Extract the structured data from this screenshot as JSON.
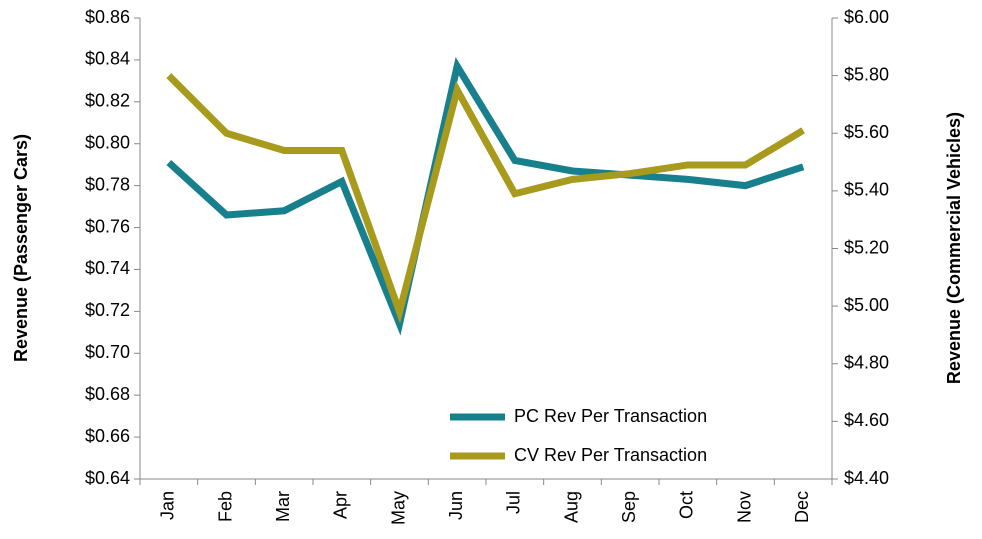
{
  "chart_data": {
    "type": "line",
    "categories": [
      "Jan",
      "Feb",
      "Mar",
      "Apr",
      "May",
      "Jun",
      "Jul",
      "Aug",
      "Sep",
      "Oct",
      "Nov",
      "Dec"
    ],
    "series": [
      {
        "name": "PC Rev Per Transaction",
        "color": "#17808c",
        "values": [
          0.791,
          0.766,
          0.768,
          0.782,
          0.714,
          0.837,
          0.792,
          0.787,
          0.785,
          0.783,
          0.78,
          0.789
        ]
      },
      {
        "name": "CV Rev Per Transaction",
        "color": "#a89a1c",
        "axis": "y2",
        "values": [
          5.8,
          5.6,
          5.54,
          5.54,
          4.98,
          5.75,
          5.39,
          5.44,
          5.46,
          5.49,
          5.49,
          5.61
        ]
      }
    ],
    "ylabel": "Revenue (Passenger Cars)",
    "y2label": "Revenue (Commercial Vehicles)",
    "ylim": [
      0.64,
      0.86
    ],
    "yticks": [
      {
        "value": 0.64,
        "label": "$0.64"
      },
      {
        "value": 0.66,
        "label": "$0.66"
      },
      {
        "value": 0.68,
        "label": "$0.68"
      },
      {
        "value": 0.7,
        "label": "$0.70"
      },
      {
        "value": 0.72,
        "label": "$0.72"
      },
      {
        "value": 0.74,
        "label": "$0.74"
      },
      {
        "value": 0.76,
        "label": "$0.76"
      },
      {
        "value": 0.78,
        "label": "$0.78"
      },
      {
        "value": 0.8,
        "label": "$0.80"
      },
      {
        "value": 0.82,
        "label": "$0.82"
      },
      {
        "value": 0.84,
        "label": "$0.84"
      },
      {
        "value": 0.86,
        "label": "$0.86"
      }
    ],
    "y2lim": [
      4.4,
      6.0
    ],
    "y2ticks": [
      {
        "value": 4.4,
        "label": "$4.40"
      },
      {
        "value": 4.6,
        "label": "$4.60"
      },
      {
        "value": 4.8,
        "label": "$4.80"
      },
      {
        "value": 5.0,
        "label": "$5.00"
      },
      {
        "value": 5.2,
        "label": "$5.20"
      },
      {
        "value": 5.4,
        "label": "$5.40"
      },
      {
        "value": 5.6,
        "label": "$5.60"
      },
      {
        "value": 5.8,
        "label": "$5.80"
      },
      {
        "value": 6.0,
        "label": "$6.00"
      }
    ],
    "grid": false,
    "legend": "bottom"
  }
}
